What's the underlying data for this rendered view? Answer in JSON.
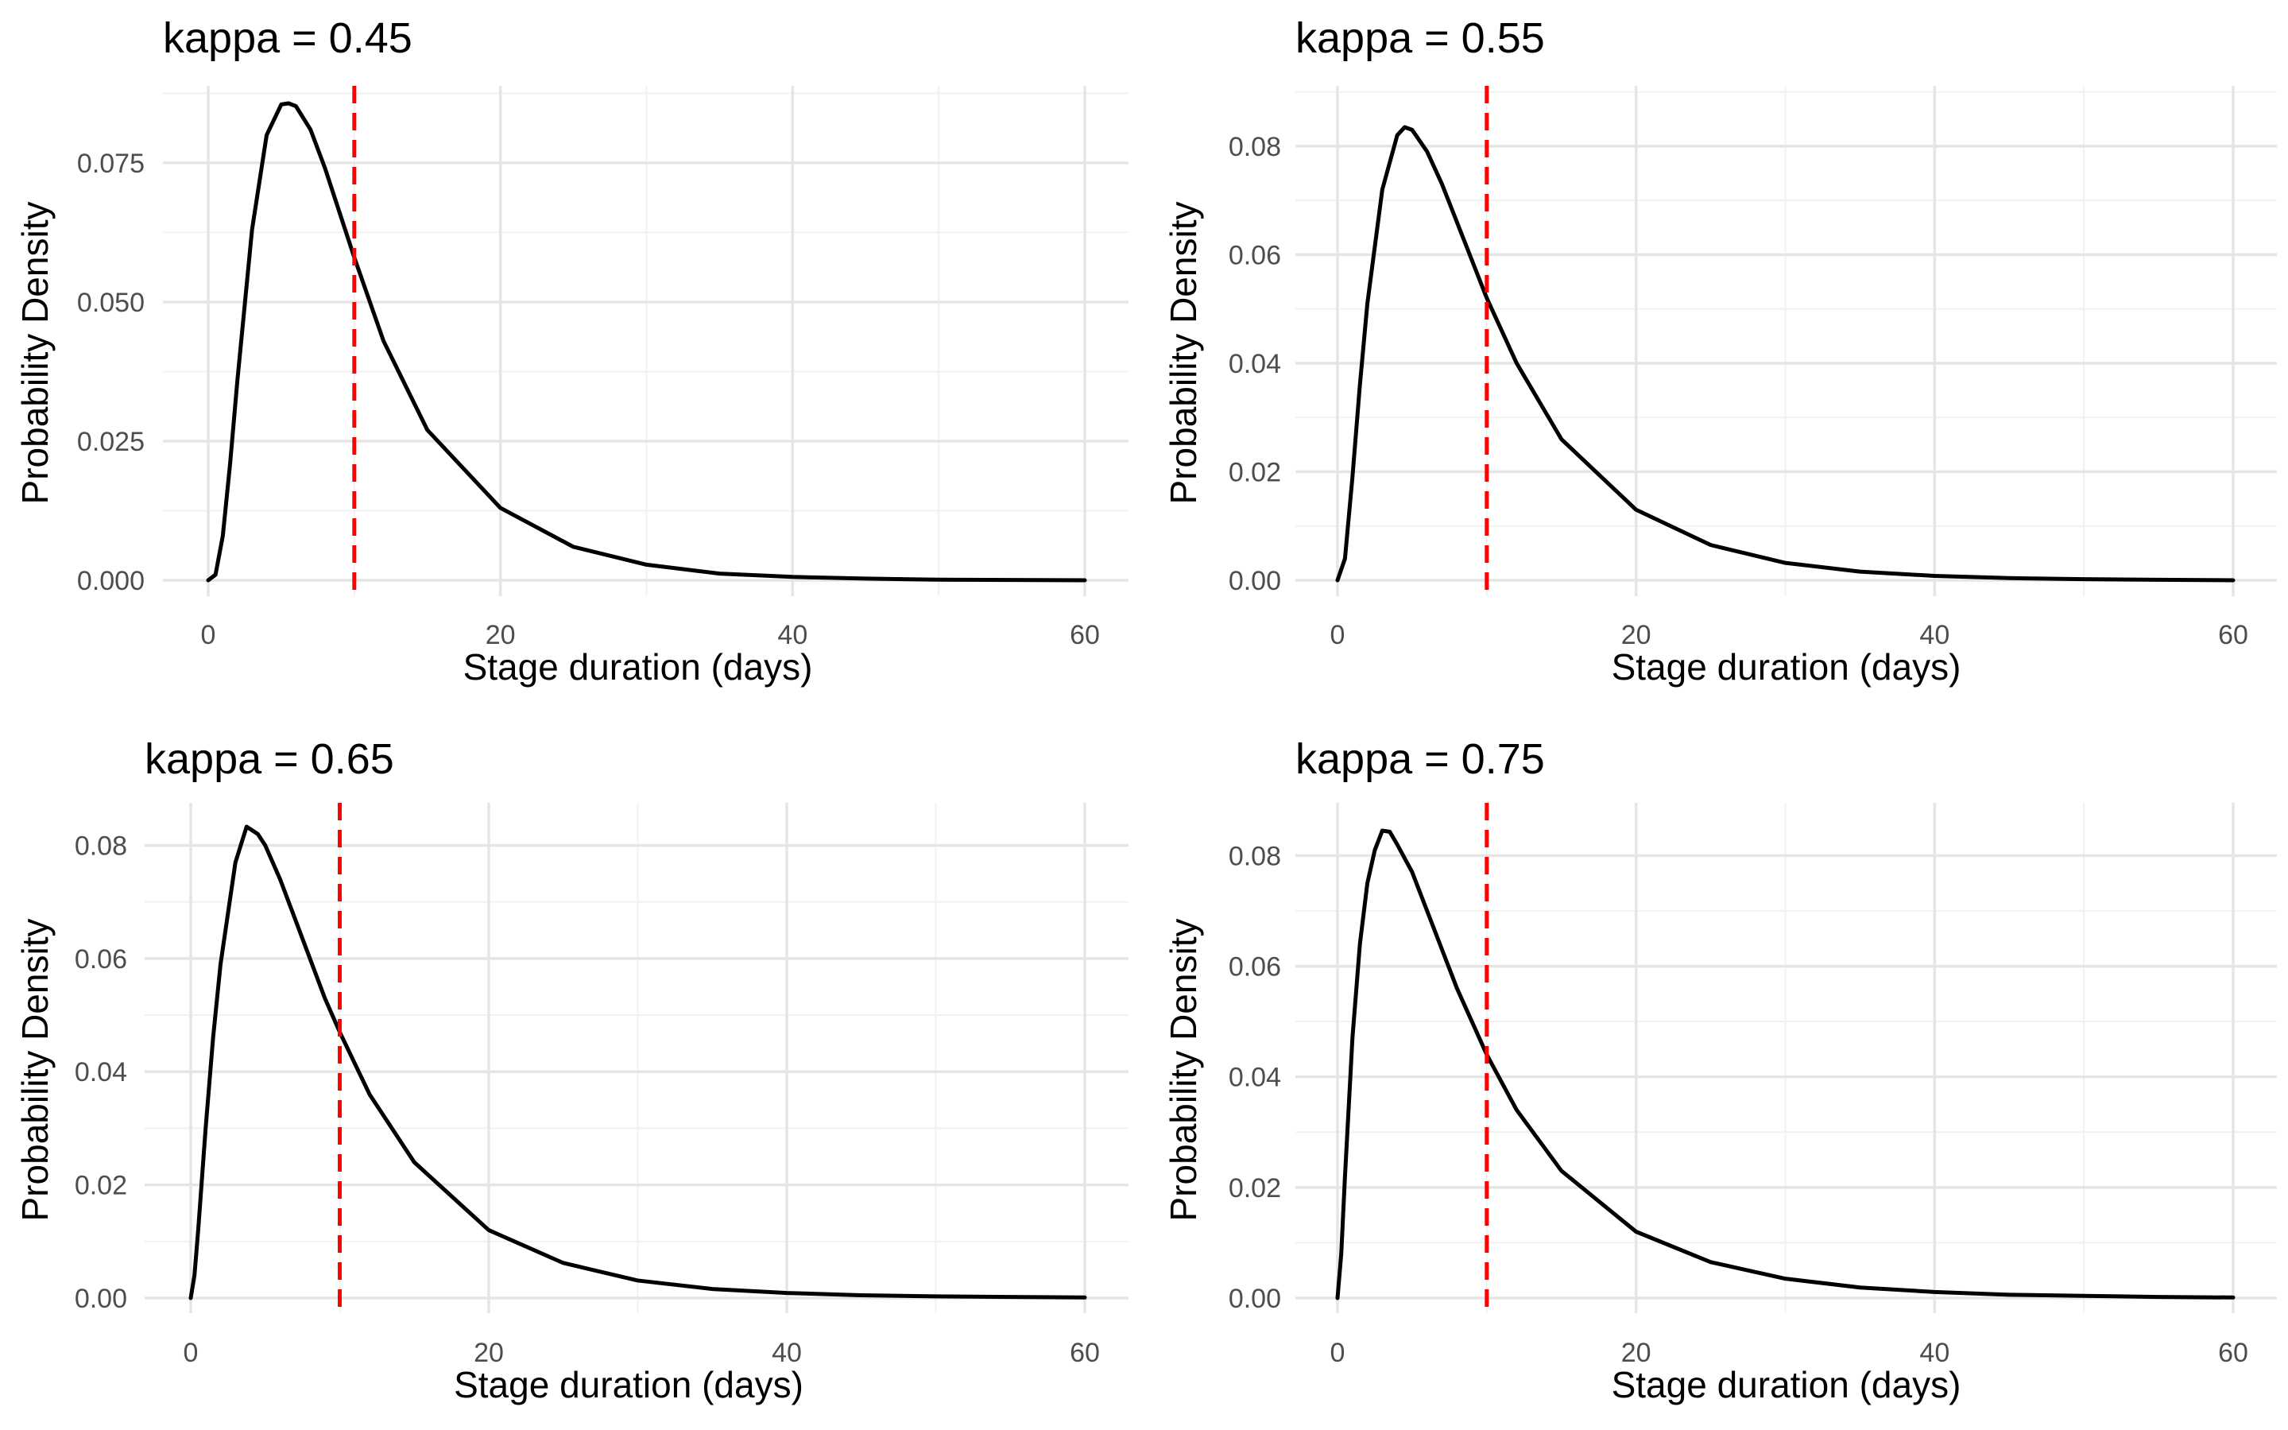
{
  "chart_data": [
    {
      "type": "line",
      "title": "kappa =  0.45",
      "xlabel": "Stage duration (days)",
      "ylabel": "Probability Density",
      "xlim": [
        0,
        60
      ],
      "ylim": [
        0,
        0.0857
      ],
      "x_ticks": [
        "0",
        "20",
        "40",
        "60"
      ],
      "y_ticks": [
        "0.000",
        "0.025",
        "0.050",
        "0.075"
      ],
      "grid": true,
      "series": [
        {
          "color": "#000000",
          "x": [
            0,
            0.5,
            1,
            1.5,
            2,
            3,
            4,
            5,
            5.5,
            6,
            7,
            8,
            9,
            10,
            12,
            15,
            20,
            25,
            30,
            35,
            40,
            45,
            50,
            55,
            60
          ],
          "y": [
            0,
            0.001,
            0.008,
            0.021,
            0.036,
            0.063,
            0.08,
            0.0855,
            0.0857,
            0.0852,
            0.081,
            0.074,
            0.066,
            0.058,
            0.043,
            0.027,
            0.013,
            0.006,
            0.0028,
            0.0012,
            0.0006,
            0.0003,
            0.0001,
            5e-05,
            0
          ]
        }
      ],
      "vline": {
        "x": 10,
        "color": "#ff0000",
        "style": "dashed"
      }
    },
    {
      "type": "line",
      "title": "kappa =  0.55",
      "xlabel": "Stage duration (days)",
      "ylabel": "Probability Density",
      "xlim": [
        0,
        60
      ],
      "ylim": [
        0,
        0.0835
      ],
      "x_ticks": [
        "0",
        "20",
        "40",
        "60"
      ],
      "y_ticks": [
        "0.00",
        "0.02",
        "0.04",
        "0.06",
        "0.08"
      ],
      "grid": true,
      "series": [
        {
          "color": "#000000",
          "x": [
            0,
            0.5,
            1,
            1.5,
            2,
            3,
            4,
            4.5,
            5,
            6,
            7,
            8,
            9,
            10,
            12,
            15,
            20,
            25,
            30,
            35,
            40,
            45,
            50,
            55,
            60
          ],
          "y": [
            0,
            0.004,
            0.019,
            0.036,
            0.051,
            0.072,
            0.082,
            0.0835,
            0.083,
            0.079,
            0.073,
            0.066,
            0.059,
            0.052,
            0.04,
            0.026,
            0.013,
            0.0065,
            0.0032,
            0.0016,
            0.0008,
            0.0004,
            0.0002,
            0.0001,
            0
          ]
        }
      ],
      "vline": {
        "x": 10,
        "color": "#ff0000",
        "style": "dashed"
      }
    },
    {
      "type": "line",
      "title": "kappa =  0.65",
      "xlabel": "Stage duration (days)",
      "ylabel": "Probability Density",
      "xlim": [
        0,
        60
      ],
      "ylim": [
        0,
        0.0833
      ],
      "x_ticks": [
        "0",
        "20",
        "40",
        "60"
      ],
      "y_ticks": [
        "0.00",
        "0.02",
        "0.04",
        "0.06",
        "0.08"
      ],
      "grid": true,
      "series": [
        {
          "color": "#000000",
          "x": [
            0,
            0.25,
            0.5,
            1,
            1.5,
            2,
            3,
            3.75,
            4.5,
            5,
            6,
            7,
            8,
            9,
            10,
            12,
            15,
            20,
            25,
            30,
            35,
            40,
            45,
            50,
            55,
            60
          ],
          "y": [
            0,
            0.004,
            0.012,
            0.03,
            0.046,
            0.059,
            0.077,
            0.0833,
            0.082,
            0.08,
            0.074,
            0.067,
            0.06,
            0.053,
            0.047,
            0.036,
            0.024,
            0.012,
            0.0062,
            0.0031,
            0.0016,
            0.0009,
            0.0005,
            0.0003,
            0.0002,
            0.0001
          ]
        }
      ],
      "vline": {
        "x": 10,
        "color": "#ff0000",
        "style": "dashed"
      }
    },
    {
      "type": "line",
      "title": "kappa =  0.75",
      "xlabel": "Stage duration (days)",
      "ylabel": "Probability Density",
      "xlim": [
        0,
        60
      ],
      "ylim": [
        0,
        0.0845
      ],
      "x_ticks": [
        "0",
        "20",
        "40",
        "60"
      ],
      "y_ticks": [
        "0.00",
        "0.02",
        "0.04",
        "0.06",
        "0.08"
      ],
      "grid": true,
      "series": [
        {
          "color": "#000000",
          "x": [
            0,
            0.25,
            0.5,
            1,
            1.5,
            2,
            2.5,
            3,
            3.5,
            4,
            5,
            6,
            7,
            8,
            9,
            10,
            12,
            15,
            20,
            25,
            30,
            35,
            40,
            45,
            50,
            55,
            60
          ],
          "y": [
            0,
            0.008,
            0.022,
            0.047,
            0.064,
            0.075,
            0.081,
            0.0845,
            0.0843,
            0.082,
            0.077,
            0.07,
            0.063,
            0.056,
            0.05,
            0.044,
            0.034,
            0.023,
            0.012,
            0.0065,
            0.0035,
            0.0019,
            0.0011,
            0.0006,
            0.0004,
            0.0002,
            0.0001
          ]
        }
      ],
      "vline": {
        "x": 10,
        "color": "#ff0000",
        "style": "dashed"
      }
    }
  ]
}
